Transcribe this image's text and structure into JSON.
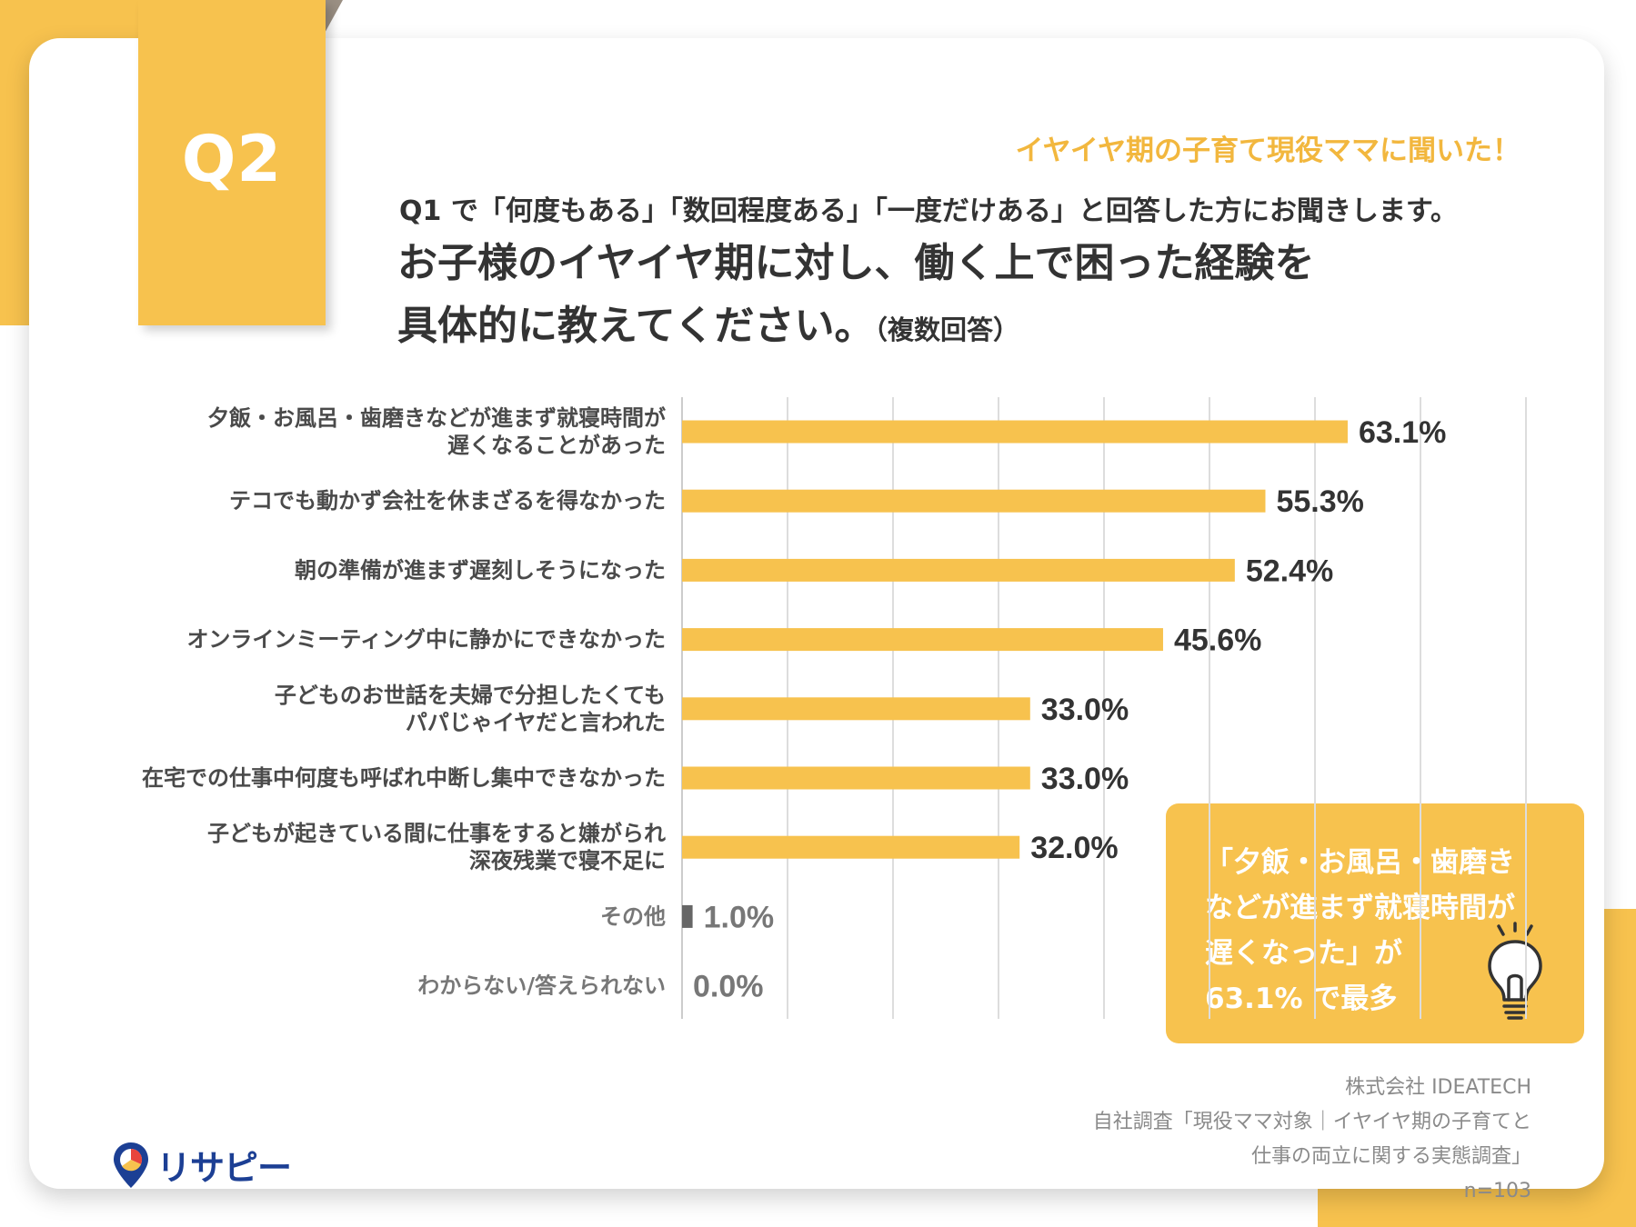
{
  "page": {
    "badge": "Q2",
    "tagline": "イヤイヤ期の子育て現役ママに聞いた！",
    "question_sub": "Q1 で「何度もある」「数回程度ある」「一度だけある」と回答した方にお聞きします。",
    "question_main_line1": "お子様のイヤイヤ期に対し、働く上で困った経験を",
    "question_main_line2": "具体的に教えてください。",
    "question_note": "（複数回答）",
    "callout": "「夕飯・お風呂・歯磨き\nなどが進まず就寝時間が\n遅くなった」が\n63.1% で最多",
    "source": {
      "company": "株式会社 IDEATECH",
      "survey_line1": "自社調査「現役ママ対象｜イヤイヤ期の子育てと",
      "survey_line2": "仕事の両立に関する実態調査」",
      "n": "n=103"
    },
    "logo": "リサピー",
    "colors": {
      "accent": "#f7c24e",
      "muted_bar": "#666666",
      "text": "#333333",
      "logo": "#1c3f94"
    }
  },
  "chart_data": {
    "type": "bar",
    "orientation": "horizontal",
    "title": "お子様のイヤイヤ期に対し、働く上で困った経験を具体的に教えてください。（複数回答）",
    "unit": "%",
    "xlim": [
      0,
      70
    ],
    "grid": true,
    "categories": [
      [
        "夕飯・お風呂・歯磨きなどが進まず就寝時間が",
        "遅くなることがあった"
      ],
      [
        "テコでも動かず会社を休まざるを得なかった"
      ],
      [
        "朝の準備が進まず遅刻しそうになった"
      ],
      [
        "オンラインミーティング中に静かにできなかった"
      ],
      [
        "子どものお世話を夫婦で分担したくても",
        "パパじゃイヤだと言われた"
      ],
      [
        "在宅での仕事中何度も呼ばれ中断し集中できなかった"
      ],
      [
        "子どもが起きている間に仕事をすると嫌がられ",
        "深夜残業で寝不足に"
      ],
      [
        "その他"
      ],
      [
        "わからない/答えられない"
      ]
    ],
    "values": [
      63.1,
      55.3,
      52.4,
      45.6,
      33.0,
      33.0,
      32.0,
      1.0,
      0.0
    ],
    "value_labels": [
      "63.1%",
      "55.3%",
      "52.4%",
      "45.6%",
      "33.0%",
      "33.0%",
      "32.0%",
      "1.0%",
      "0.0%"
    ],
    "muted": [
      false,
      false,
      false,
      false,
      false,
      false,
      false,
      true,
      true
    ]
  }
}
